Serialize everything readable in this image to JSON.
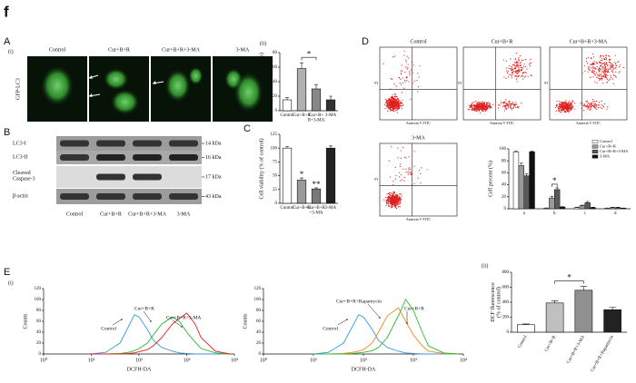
{
  "figure_label": "f",
  "panels": {
    "A": {
      "label": "A",
      "sub_i": "(i)",
      "sub_ii": "(ii)",
      "image_titles": [
        "Control",
        "Cur+B+R",
        "Cur+B+R+3-MA",
        "3-MA"
      ],
      "row_label": "GFP-LC3"
    },
    "B": {
      "label": "B",
      "row_labels": [
        "LC3-I",
        "LC3-II",
        "Cleaved\nCaspase-3",
        "β-actin"
      ],
      "sizes": [
        "14 kDa",
        "16 kDa",
        "17 kDa",
        "43 kDa"
      ],
      "lanes": [
        "Control",
        "Cur+B+R",
        "Cur+B+R+3-MA",
        "3-MA"
      ]
    },
    "C": {
      "label": "C"
    },
    "D": {
      "label": "D",
      "plot_titles": [
        "Control",
        "Cur+B+R",
        "Cur+B+R+3-MA",
        "3-MA"
      ],
      "x_axis": "Annexin V FITC",
      "y_axis": "PI"
    },
    "E": {
      "label": "E",
      "sub_i": "(i)",
      "sub_ii": "(ii)"
    }
  },
  "chart_data": [
    {
      "type": "bar",
      "y_label": "Cells with EGFP-LC3 (%)",
      "categories": [
        "Control",
        "Cur+B+R",
        "Cur+B+\nR+3-MA",
        "3-MA"
      ],
      "values": [
        15,
        58,
        30,
        15
      ],
      "errors": [
        3,
        8,
        6,
        5
      ],
      "colors": [
        "#ffffff",
        "#b0b0b0",
        "#888888",
        "#333333"
      ],
      "ylim": [
        0,
        80
      ],
      "yticks": [
        0,
        20,
        40,
        60,
        80
      ],
      "grid": false,
      "annotations": [
        "*"
      ]
    },
    {
      "type": "bar",
      "y_label": "Cell viability (% of control)",
      "categories": [
        "Control",
        "Cur+B+R",
        "Cur+B+R\n+3-MA",
        "3-MA"
      ],
      "values": [
        100,
        42,
        26,
        100
      ],
      "errors": [
        3,
        4,
        2,
        4
      ],
      "colors": [
        "#ffffff",
        "#9a9a9a",
        "#7a7a7a",
        "#222222"
      ],
      "ylim": [
        0,
        125
      ],
      "yticks": [
        0,
        25,
        50,
        75,
        100,
        125
      ],
      "grid": false,
      "annotations": [
        "*",
        "**"
      ]
    },
    {
      "type": "grouped_bar",
      "y_label": "Cell percent (%)",
      "categories": [
        "a",
        "b",
        "c",
        "d"
      ],
      "series": [
        {
          "name": "Control",
          "color": "#ffffff",
          "values": [
            95,
            1,
            2,
            1
          ],
          "errors": [
            1,
            0.5,
            0.5,
            0.3
          ]
        },
        {
          "name": "Cur+B+R",
          "color": "#9a9a9a",
          "values": [
            72,
            18,
            5,
            2
          ],
          "errors": [
            4,
            3,
            1,
            0.5
          ]
        },
        {
          "name": "Cur+B+R+3-MA",
          "color": "#5a5a5a",
          "values": [
            55,
            32,
            10,
            2
          ],
          "errors": [
            3,
            3,
            2,
            0.5
          ]
        },
        {
          "name": "3-MA",
          "color": "#111111",
          "values": [
            95,
            3,
            2,
            1
          ],
          "errors": [
            1,
            0.5,
            0.5,
            0.3
          ]
        }
      ],
      "ylim": [
        0,
        100
      ],
      "yticks": [
        0,
        20,
        40,
        60,
        80,
        100
      ],
      "grid": false,
      "legend": "upper right",
      "annotations": [
        "*"
      ]
    },
    {
      "type": "line",
      "x_label": "DCFH-DA",
      "y_label": "Counts",
      "xscale": "log",
      "x": [
        10,
        20,
        40,
        60,
        80,
        100,
        150,
        200,
        300,
        500,
        700,
        1000,
        1500,
        2000,
        4000,
        8000
      ],
      "series": [
        {
          "name": "Control",
          "color": "#3a9ad9",
          "values": [
            0,
            3,
            20,
            50,
            72,
            68,
            45,
            25,
            12,
            5,
            2,
            1,
            0,
            0,
            0,
            0
          ]
        },
        {
          "name": "Cur+B+R",
          "color": "#2db82d",
          "values": [
            0,
            0,
            1,
            3,
            6,
            10,
            20,
            35,
            55,
            68,
            60,
            40,
            22,
            10,
            2,
            0
          ]
        },
        {
          "name": "Cur+B+R+3-MA",
          "color": "#e0201b",
          "values": [
            0,
            0,
            0,
            1,
            2,
            4,
            8,
            15,
            30,
            55,
            65,
            75,
            55,
            30,
            5,
            0
          ]
        }
      ],
      "xlim": [
        1,
        10000
      ],
      "xticks": [
        {
          "value": 1,
          "label": "10⁰"
        },
        {
          "value": 10,
          "label": "10¹"
        },
        {
          "value": 100,
          "label": "10²"
        },
        {
          "value": 1000,
          "label": "10³"
        },
        {
          "value": 10000,
          "label": "10⁴"
        }
      ],
      "ylim": [
        0,
        120
      ],
      "yticks": [
        0,
        20,
        40,
        60,
        80,
        100,
        120
      ],
      "grid": false
    },
    {
      "type": "line",
      "x_label": "DCFH-DA",
      "y_label": "Counts",
      "xscale": "log",
      "x": [
        10,
        20,
        40,
        60,
        80,
        100,
        150,
        200,
        300,
        500,
        700,
        1000,
        1500,
        2000,
        4000,
        8000
      ],
      "series": [
        {
          "name": "Control",
          "color": "#3a9ad9",
          "values": [
            0,
            3,
            20,
            50,
            72,
            68,
            45,
            25,
            12,
            5,
            2,
            1,
            0,
            0,
            0,
            0
          ]
        },
        {
          "name": "Cur+B+R+Rapamycin",
          "color": "#f08a1c",
          "values": [
            0,
            0,
            1,
            3,
            5,
            8,
            20,
            40,
            70,
            85,
            60,
            35,
            15,
            5,
            1,
            0
          ]
        },
        {
          "name": "Cur+B+R",
          "color": "#2db82d",
          "values": [
            0,
            0,
            0,
            1,
            2,
            3,
            6,
            12,
            30,
            70,
            100,
            80,
            40,
            15,
            2,
            0
          ]
        }
      ],
      "xlim": [
        1,
        10000
      ],
      "xticks": [
        {
          "value": 1,
          "label": "10⁰"
        },
        {
          "value": 10,
          "label": "10¹"
        },
        {
          "value": 100,
          "label": "10²"
        },
        {
          "value": 1000,
          "label": "10³"
        },
        {
          "value": 10000,
          "label": "10⁴"
        }
      ],
      "ylim": [
        0,
        120
      ],
      "yticks": [
        0,
        20,
        40,
        60,
        80,
        100,
        120
      ],
      "grid": false
    },
    {
      "type": "bar",
      "y_label": "DCF fluorescence\n(% of control)",
      "categories": [
        "Control",
        "Cur+B+R",
        "Cur+B+R+3-MA",
        "Cur+B+R+Rapamycin"
      ],
      "values": [
        100,
        390,
        560,
        300
      ],
      "errors": [
        10,
        30,
        50,
        35
      ],
      "colors": [
        "#ffffff",
        "#c0c0c0",
        "#909090",
        "#222222"
      ],
      "ylim": [
        0,
        800
      ],
      "yticks": [
        0,
        200,
        400,
        600,
        800
      ],
      "grid": false,
      "annotations": [
        "*"
      ],
      "rotate_labels": true
    }
  ]
}
